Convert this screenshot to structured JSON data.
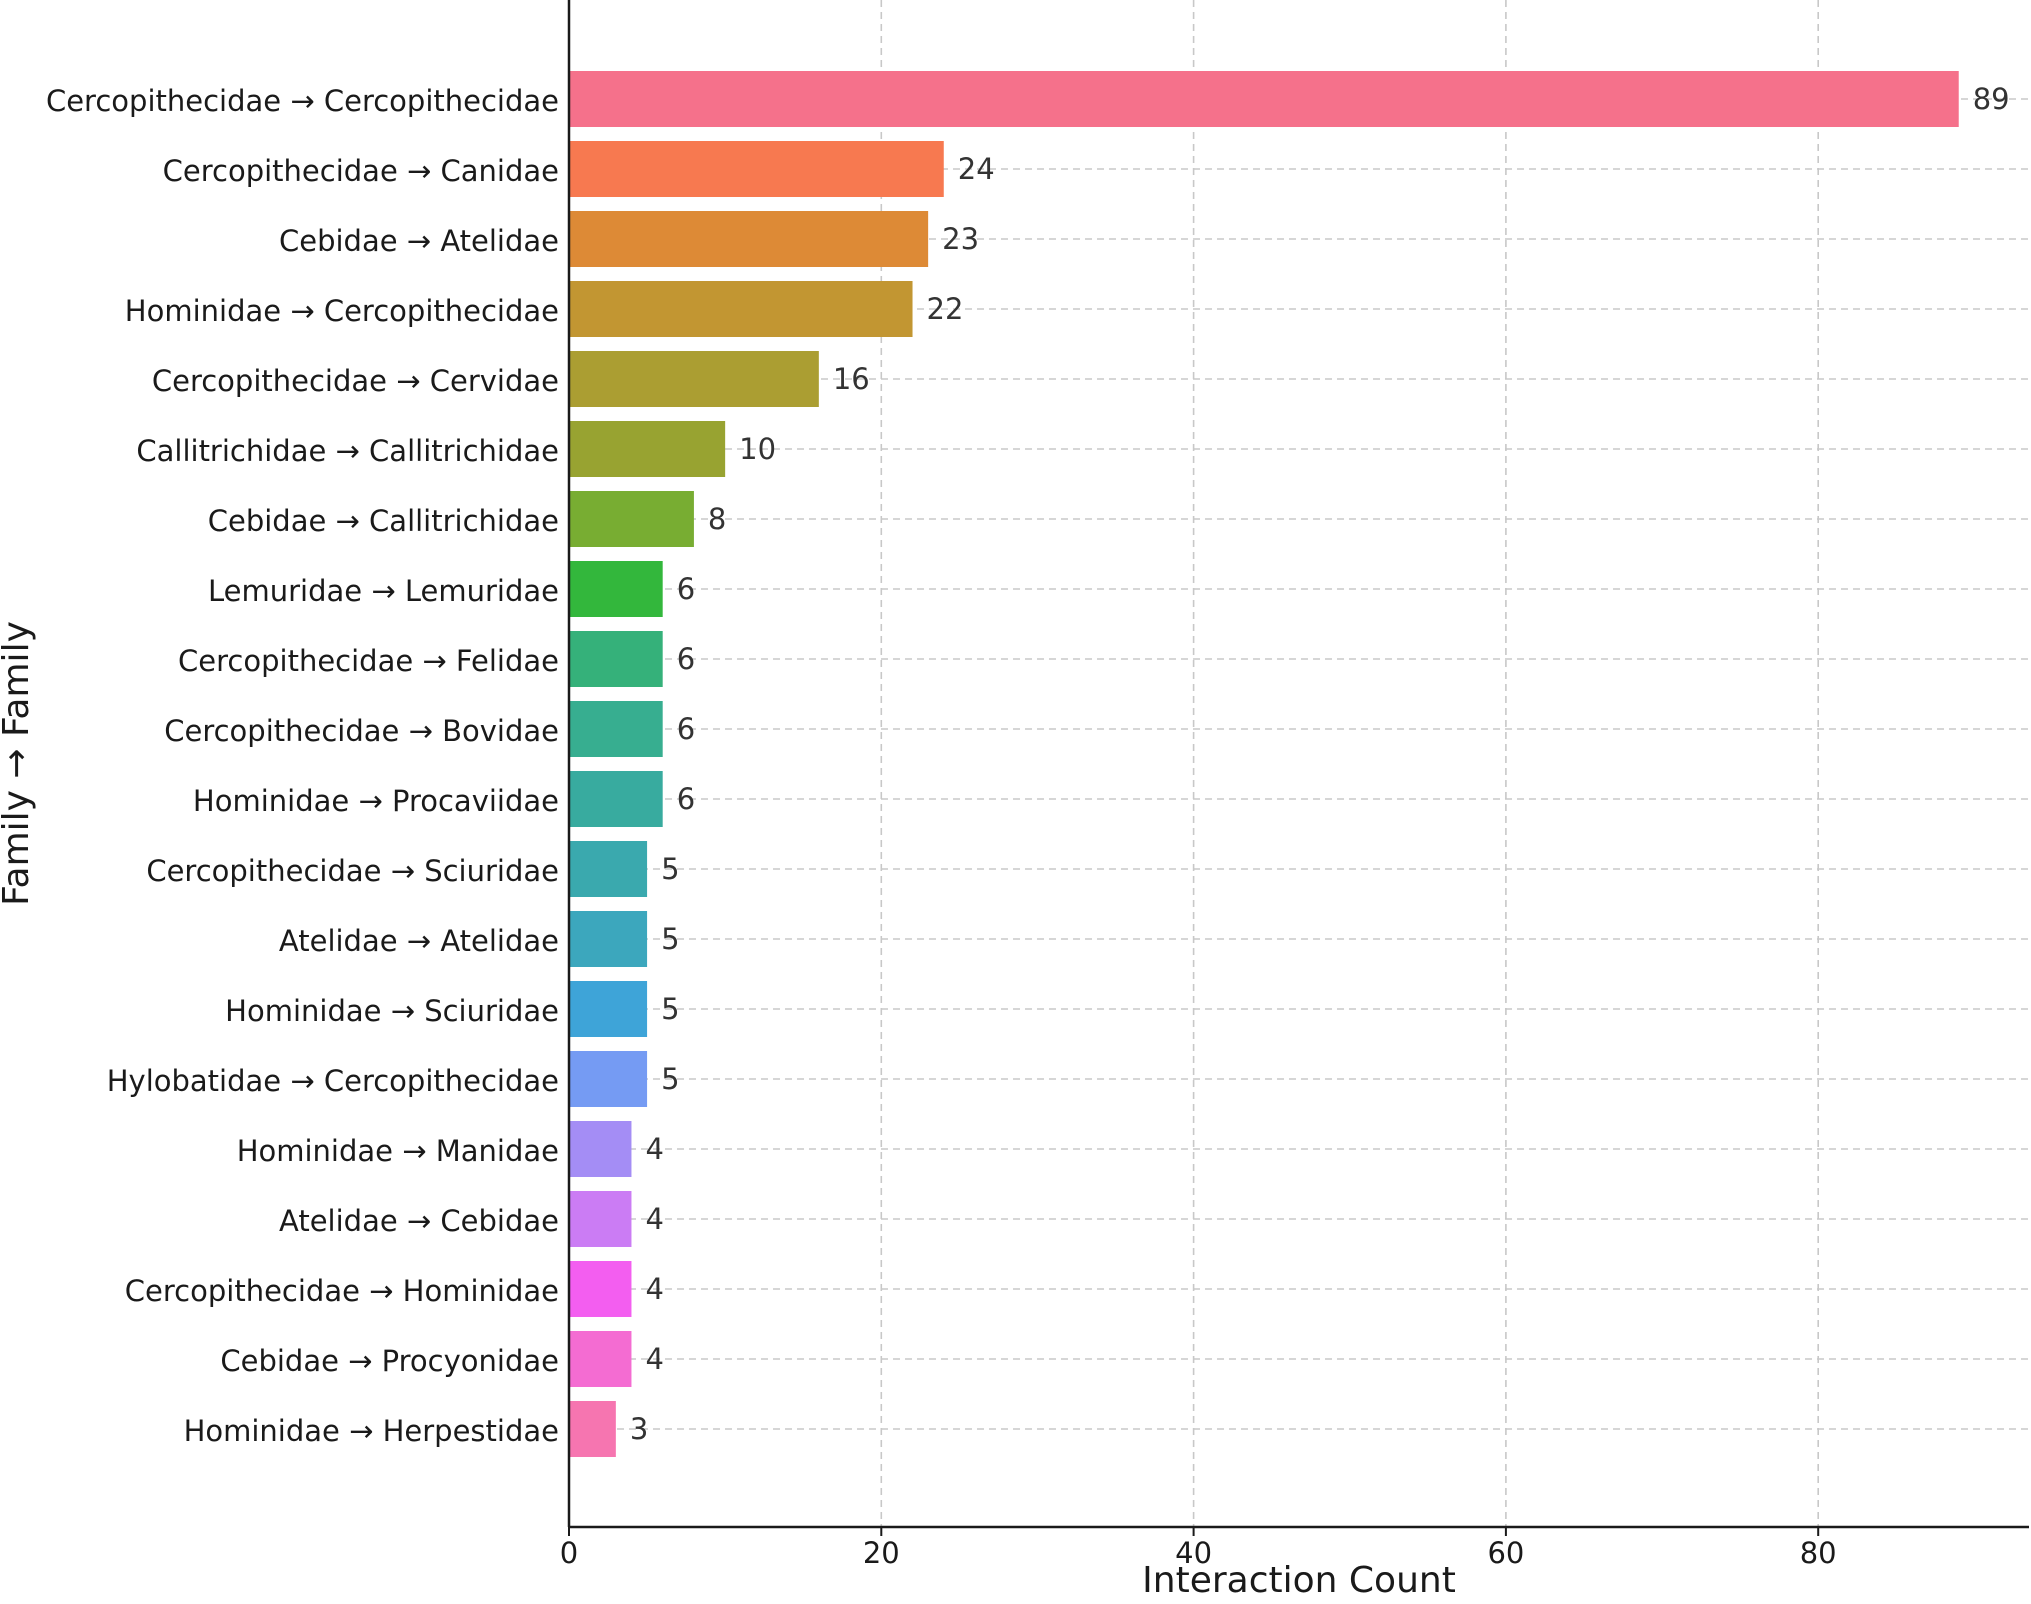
{
  "chart_data": {
    "type": "bar",
    "orientation": "horizontal",
    "title": "",
    "xlabel": "Interaction Count",
    "ylabel": "Family → Family",
    "xlim": [
      0,
      93.5
    ],
    "xticks": [
      0,
      20,
      40,
      60,
      80
    ],
    "grid": true,
    "legend": "none",
    "categories": [
      "Cercopithecidae → Cercopithecidae",
      "Cercopithecidae → Canidae",
      "Cebidae → Atelidae",
      "Hominidae → Cercopithecidae",
      "Cercopithecidae → Cervidae",
      "Callitrichidae → Callitrichidae",
      "Cebidae → Callitrichidae",
      "Lemuridae → Lemuridae",
      "Cercopithecidae → Felidae",
      "Cercopithecidae → Bovidae",
      "Hominidae → Procaviidae",
      "Cercopithecidae → Sciuridae",
      "Atelidae → Atelidae",
      "Hominidae → Sciuridae",
      "Hylobatidae → Cercopithecidae",
      "Hominidae → Manidae",
      "Atelidae → Cebidae",
      "Cercopithecidae → Hominidae",
      "Cebidae → Procyonidae",
      "Hominidae → Herpestidae"
    ],
    "values": [
      89,
      24,
      23,
      22,
      16,
      10,
      8,
      6,
      6,
      6,
      6,
      5,
      5,
      5,
      5,
      4,
      4,
      4,
      4,
      3
    ],
    "colors": [
      "#f5718b",
      "#f77950",
      "#dd8a36",
      "#c29632",
      "#ab9e32",
      "#98a331",
      "#78ad32",
      "#33b73c",
      "#35b17a",
      "#37ae90",
      "#38ab9f",
      "#3aa9ae",
      "#3ca7bd",
      "#3ea4d8",
      "#759bf3",
      "#a48df5",
      "#cb7cf4",
      "#f35ef0",
      "#f46cd2",
      "#f675b0"
    ]
  }
}
